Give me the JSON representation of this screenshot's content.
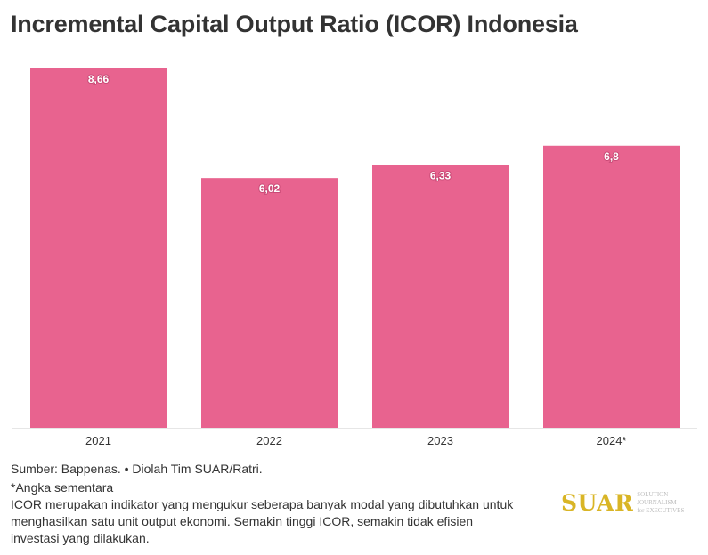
{
  "title": "Incremental Capital Output Ratio (ICOR) Indonesia",
  "chart_data": {
    "type": "bar",
    "title": "Incremental Capital Output Ratio (ICOR) Indonesia",
    "categories": [
      "2021",
      "2022",
      "2023",
      "2024*"
    ],
    "values": [
      8.66,
      6.02,
      6.33,
      6.8
    ],
    "labels": [
      "8,66",
      "6,02",
      "6,33",
      "6,8"
    ],
    "xlabel": "",
    "ylabel": "",
    "ylim": [
      0,
      8.66
    ],
    "grid": false,
    "color": "#e8638f"
  },
  "footer": {
    "source": "Sumber: Bappenas. • Diolah Tim SUAR/Ratri.",
    "note": "*Angka sementara",
    "desc1": "ICOR merupakan indikator yang mengukur seberapa banyak modal yang dibutuhkan untuk",
    "desc2": "menghasilkan satu unit output ekonomi. Semakin tinggi ICOR, semakin tidak efisien",
    "desc3": "investasi yang dilakukan."
  },
  "logo": {
    "word": "SUAR",
    "tag1": "SOLUTION JOURNALISM",
    "tag2": "for EXECUTIVES"
  }
}
